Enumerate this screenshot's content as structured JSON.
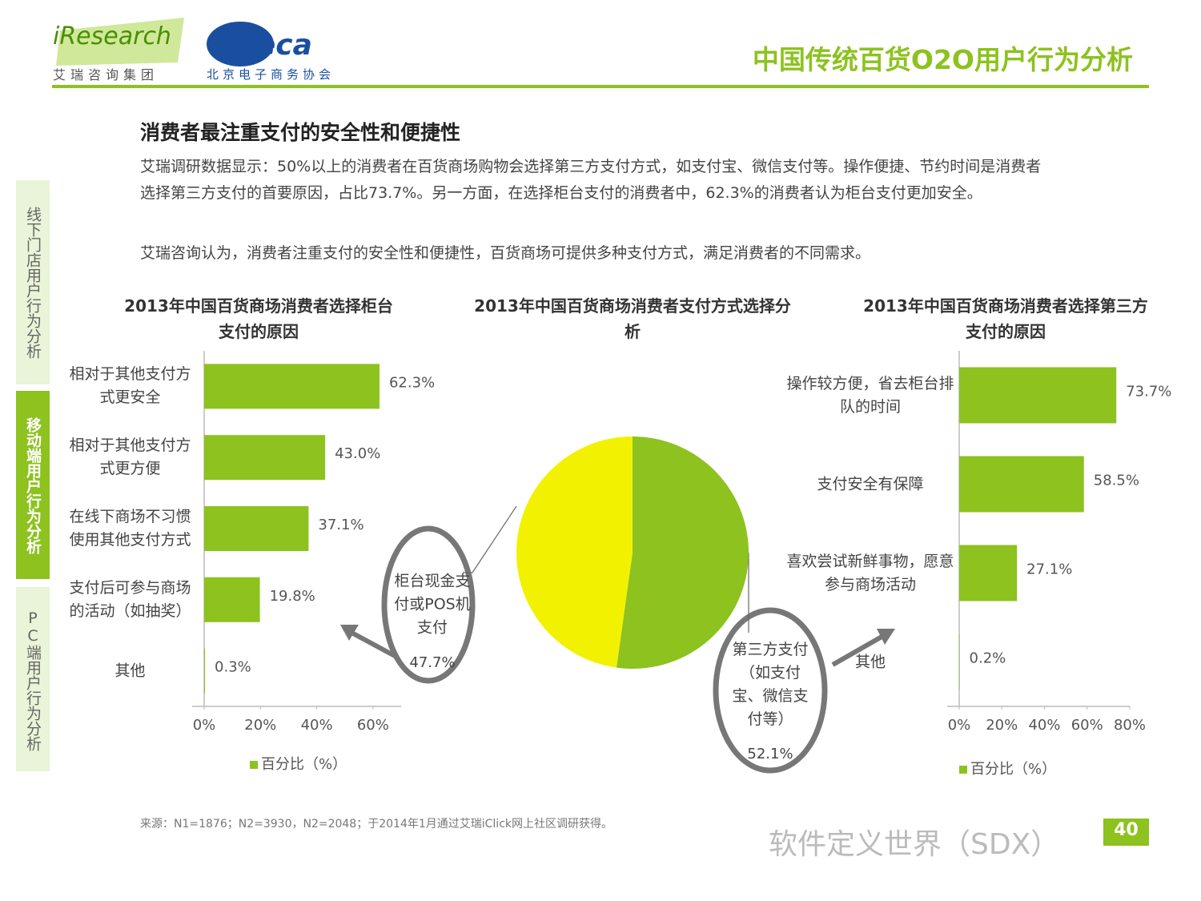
{
  "header": {
    "logo1": "iResearch",
    "logo1_sub": "艾瑞咨询集团",
    "logo2": "eBeca",
    "logo2_sub": "北京电子商务协会",
    "title": "中国传统百货O2O用户行为分析"
  },
  "sidebar": [
    "线下门店用户行为分析",
    "移动端用户行为分析",
    "PC端用户行为分析"
  ],
  "heading": "消费者最注重支付的安全性和便捷性",
  "paragraphs": [
    "艾瑞调研数据显示：50%以上的消费者在百货商场购物会选择第三方支付方式，如支付宝、微信支付等。操作便捷、节约时间是消费者选择第三方支付的首要原因，占比73.7%。另一方面，在选择柜台支付的消费者中，62.3%的消费者认为柜台支付更加安全。",
    "艾瑞咨询认为，消费者注重支付的安全性和便捷性，百货商场可提供多种支付方式，满足消费者的不同需求。"
  ],
  "chart_data": [
    {
      "type": "bar",
      "orientation": "horizontal",
      "title": "2013年中国百货商场消费者选择柜台支付的原因",
      "categories": [
        "相对于其他支付方式更安全",
        "相对于其他支付方式更方便",
        "在线下商场不习惯使用其他支付方式",
        "支付后可参与商场的活动（如抽奖）",
        "其他"
      ],
      "series": [
        {
          "name": "百分比（%）",
          "color": "#8dc21f",
          "values": [
            62.3,
            43.0,
            37.1,
            19.8,
            0.3
          ],
          "value_labels": [
            "62.3%",
            "43.0%",
            "37.1%",
            "19.8%",
            "0.3%"
          ]
        }
      ],
      "xlim": [
        0,
        70
      ],
      "xticks": [
        {
          "value": 0,
          "label": "0%"
        },
        {
          "value": 20,
          "label": "20%"
        },
        {
          "value": 40,
          "label": "40%"
        },
        {
          "value": 60,
          "label": "60%"
        }
      ],
      "legend": "bottom"
    },
    {
      "type": "pie",
      "title": "2013年中国百货商场消费者支付方式选择分析",
      "categories": [
        "柜台现金支付或POS机支付",
        "第三方支付（如支付宝、微信支付等）"
      ],
      "values": [
        47.7,
        52.1
      ],
      "value_labels": [
        "47.7%",
        "52.1%"
      ],
      "colors": [
        "#f2f200",
        "#8dc21f"
      ]
    },
    {
      "type": "bar",
      "orientation": "horizontal",
      "title": "2013年中国百货商场消费者选择第三方支付的原因",
      "categories": [
        "操作较方便，省去柜台排队的时间",
        "支付安全有保障",
        "喜欢尝试新鲜事物，愿意参与商场活动",
        "其他"
      ],
      "series": [
        {
          "name": "百分比（%）",
          "color": "#8dc21f",
          "values": [
            73.7,
            58.5,
            27.1,
            0.2
          ],
          "value_labels": [
            "73.7%",
            "58.5%",
            "27.1%",
            "0.2%"
          ]
        }
      ],
      "xlim": [
        0,
        80
      ],
      "xticks": [
        {
          "value": 0,
          "label": "0%"
        },
        {
          "value": 20,
          "label": "20%"
        },
        {
          "value": 40,
          "label": "40%"
        },
        {
          "value": 60,
          "label": "60%"
        },
        {
          "value": 80,
          "label": "80%"
        }
      ],
      "legend": "bottom"
    }
  ],
  "source": "来源：N1=1876；N2=3930，N2=2048；于2014年1月通过艾瑞iClick网上社区调研获得。",
  "watermark": "软件定义世界（SDX）",
  "page_number": "40"
}
